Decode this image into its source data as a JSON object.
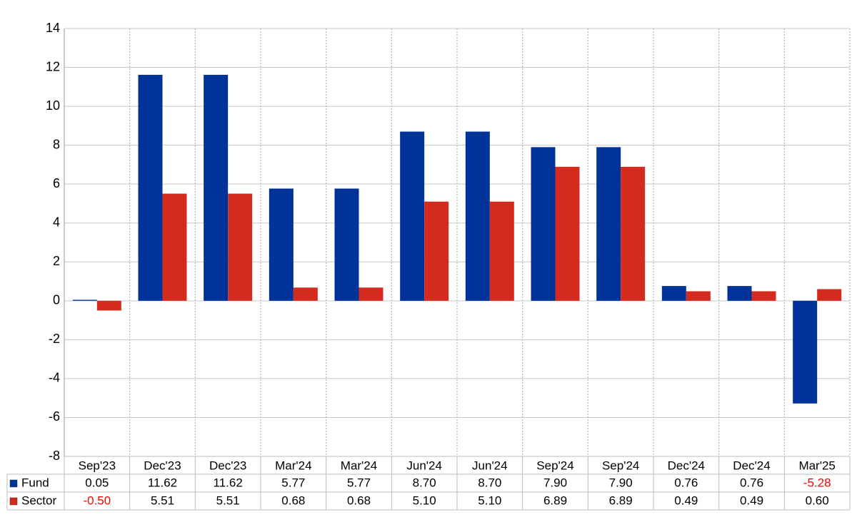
{
  "chart_data": {
    "type": "bar",
    "categories": [
      "Sep'23",
      "Dec'23",
      "Dec'23",
      "Mar'24",
      "Mar'24",
      "Jun'24",
      "Jun'24",
      "Sep'24",
      "Sep'24",
      "Dec'24",
      "Dec'24",
      "Mar'25"
    ],
    "series": [
      {
        "name": "Fund",
        "color": "#003399",
        "values": [
          0.05,
          11.62,
          11.62,
          5.77,
          5.77,
          8.7,
          8.7,
          7.9,
          7.9,
          0.76,
          0.76,
          -5.28
        ],
        "value_labels": [
          "0.05",
          "11.62",
          "11.62",
          "5.77",
          "5.77",
          "8.70",
          "8.70",
          "7.90",
          "7.90",
          "0.76",
          "0.76",
          "-5.28"
        ]
      },
      {
        "name": "Sector",
        "color": "#d52b1e",
        "values": [
          -0.5,
          5.51,
          5.51,
          0.68,
          0.68,
          5.1,
          5.1,
          6.89,
          6.89,
          0.49,
          0.49,
          0.6
        ],
        "value_labels": [
          "-0.50",
          "5.51",
          "5.51",
          "0.68",
          "0.68",
          "5.10",
          "5.10",
          "6.89",
          "6.89",
          "0.49",
          "0.49",
          "0.60"
        ]
      }
    ],
    "ylim": [
      -8,
      14
    ],
    "yticks": [
      -8,
      -6,
      -4,
      -2,
      0,
      2,
      4,
      6,
      8,
      10,
      12,
      14
    ],
    "grid": true,
    "negative_label_color": "#ff0000"
  }
}
